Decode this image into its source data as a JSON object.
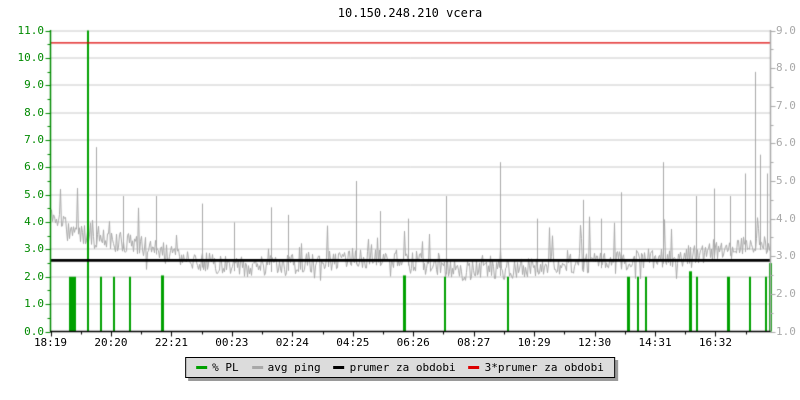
{
  "chart_data": {
    "type": "line",
    "title": "10.150.248.210 vcera",
    "x_tick_labels": [
      "18:19",
      "20:20",
      "22:21",
      "00:23",
      "02:24",
      "04:25",
      "06:26",
      "08:27",
      "10:29",
      "12:30",
      "14:31",
      "16:32"
    ],
    "y_left_axis": {
      "range": [
        0,
        11
      ],
      "tick_labels": [
        "11.0",
        "10.0",
        "9.0",
        "8.0",
        "7.0",
        "6.0",
        "5.0",
        "4.0",
        "3.0",
        "2.0",
        "1.0",
        "0.0"
      ],
      "color": "#008a00",
      "series": "% PL"
    },
    "y_right_axis": {
      "range": [
        1,
        9
      ],
      "tick_labels": [
        "9.0",
        "8.0",
        "7.0",
        "6.0",
        "5.0",
        "4.0",
        "3.0",
        "2.0",
        "1.0"
      ],
      "color": "#a9a9a9",
      "series": "avg ping"
    },
    "grid": true,
    "legend_position": "bottom-center",
    "legend": [
      {
        "label": "% PL",
        "color": "#00a000"
      },
      {
        "label": "avg ping",
        "color": "#a8a8a8"
      },
      {
        "label": "prumer za obdobi",
        "color": "#000000"
      },
      {
        "label": "3*prumer za obdobi",
        "color": "#dd0000"
      }
    ],
    "colors": {
      "grid": "#c8c8c8",
      "x_axis": "#000000",
      "pl_bars": "#00a000",
      "avg_ping": "#a8a8a8",
      "avg_period_line": "#000000",
      "avg3x_line": "#dd0000"
    },
    "avg_period_value_right_scale": 2.89,
    "avg3x_value_right_scale": 8.67,
    "pl_bars": [
      [
        0.0299,
        2.0,
        7
      ],
      [
        0.0514,
        11.0,
        2
      ],
      [
        0.0708,
        2.0,
        2
      ],
      [
        0.0875,
        2.0,
        2
      ],
      [
        0.1111,
        2.0,
        2
      ],
      [
        0.1556,
        2.05,
        3
      ],
      [
        0.4917,
        2.05,
        3
      ],
      [
        0.5486,
        2.0,
        2
      ],
      [
        0.6361,
        2.0,
        2
      ],
      [
        0.8028,
        2.0,
        3
      ],
      [
        0.8153,
        2.0,
        2
      ],
      [
        0.8264,
        2.0,
        2
      ],
      [
        0.8889,
        2.2,
        3
      ],
      [
        0.8986,
        2.0,
        2
      ],
      [
        0.9417,
        2.0,
        3
      ],
      [
        0.9722,
        2.0,
        2
      ],
      [
        0.9931,
        2.0,
        2
      ],
      [
        1.0,
        2.5,
        3
      ]
    ],
    "avg_ping_envelope": [
      [
        0.0,
        4.2,
        1.6
      ],
      [
        0.015,
        3.9,
        1.6
      ],
      [
        0.05,
        3.5,
        1.3
      ],
      [
        0.1,
        3.35,
        1.1
      ],
      [
        0.16,
        3.15,
        0.9
      ],
      [
        0.21,
        2.85,
        0.8
      ],
      [
        0.28,
        2.7,
        0.7
      ],
      [
        0.36,
        2.8,
        0.8
      ],
      [
        0.43,
        2.95,
        1.0
      ],
      [
        0.5,
        2.9,
        1.1
      ],
      [
        0.56,
        2.62,
        0.55
      ],
      [
        0.61,
        2.6,
        0.7
      ],
      [
        0.66,
        2.7,
        1.1
      ],
      [
        0.72,
        2.8,
        1.4
      ],
      [
        0.79,
        2.85,
        1.2
      ],
      [
        0.85,
        2.95,
        1.5
      ],
      [
        0.91,
        3.05,
        1.5
      ],
      [
        0.955,
        3.2,
        1.9
      ],
      [
        0.98,
        3.35,
        2.2
      ],
      [
        1.0,
        3.25,
        1.9
      ]
    ],
    "avg_ping_spikes": [
      [
        0.063,
        5.9
      ],
      [
        0.1,
        4.6
      ],
      [
        0.146,
        4.6
      ],
      [
        0.21,
        4.4
      ],
      [
        0.255,
        3.9
      ],
      [
        0.306,
        4.3
      ],
      [
        0.33,
        4.1
      ],
      [
        0.424,
        5.0
      ],
      [
        0.458,
        4.2
      ],
      [
        0.497,
        4.0
      ],
      [
        0.549,
        4.6
      ],
      [
        0.624,
        5.5
      ],
      [
        0.676,
        4.0
      ],
      [
        0.74,
        4.5
      ],
      [
        0.765,
        4.0
      ],
      [
        0.792,
        4.7
      ],
      [
        0.851,
        5.5
      ],
      [
        0.896,
        4.6
      ],
      [
        0.921,
        4.8
      ],
      [
        0.944,
        4.6
      ],
      [
        0.965,
        5.2
      ],
      [
        0.979,
        7.9
      ],
      [
        0.986,
        5.7
      ],
      [
        0.995,
        5.2
      ]
    ],
    "noise_seed": 11
  }
}
